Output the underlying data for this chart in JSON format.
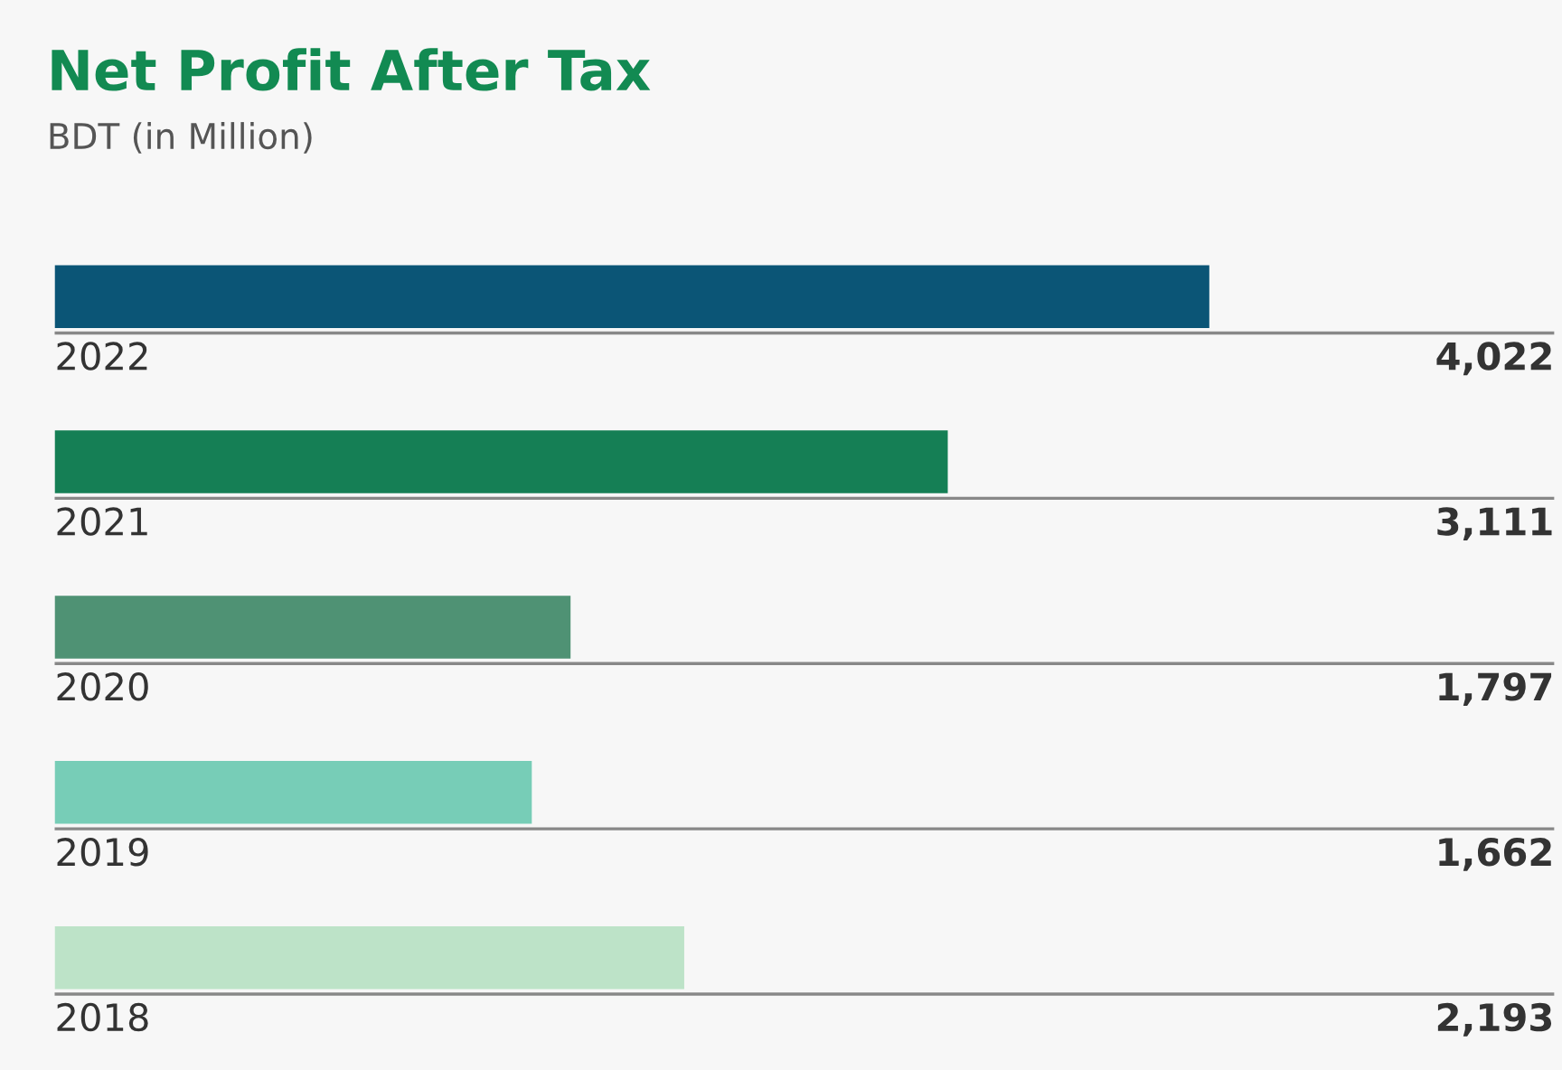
{
  "chart_data": {
    "type": "bar",
    "orientation": "horizontal",
    "title": "Net Profit After Tax",
    "subtitle": "BDT (in Million)",
    "categories": [
      "2022",
      "2021",
      "2020",
      "2019",
      "2018"
    ],
    "values": [
      4022,
      3111,
      1797,
      1662,
      2193
    ],
    "colors": [
      "#0b5576",
      "#157f55",
      "#4f9274",
      "#77cdb7",
      "#bde3c8"
    ],
    "value_labels": [
      "4,022",
      "3,111",
      "1,797",
      "1,662",
      "2,193"
    ],
    "legend": false
  }
}
